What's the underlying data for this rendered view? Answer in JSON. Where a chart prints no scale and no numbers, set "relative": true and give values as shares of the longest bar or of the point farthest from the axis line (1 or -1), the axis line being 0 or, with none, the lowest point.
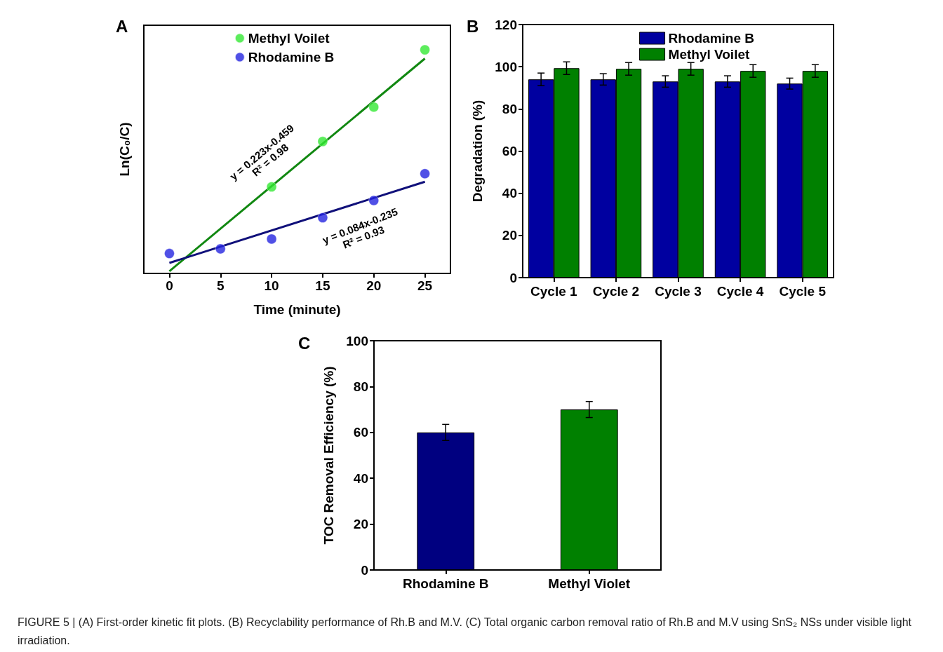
{
  "chart_data": [
    {
      "type": "scatter",
      "title": "A",
      "xlabel": "Time (minute)",
      "ylabel": "Ln(C₀/C)",
      "relative": true,
      "xlim": [
        -2.5,
        27.5
      ],
      "xticks": [
        0,
        5,
        10,
        15,
        20,
        25
      ],
      "marker": "circle",
      "legend": "top",
      "annotations": [
        "y = 0.223x-0.459",
        "R² = 0.98",
        "y = 0.084x-0.235",
        "R² = 0.93"
      ],
      "series": [
        {
          "name": "Methyl Voilet",
          "color": "#33e833",
          "x": [
            10,
            15,
            20,
            25
          ],
          "values": [
            0.387,
            0.59,
            0.744,
            1
          ]
        },
        {
          "name": "Rhodamine B",
          "color": "#2424e0",
          "x": [
            0,
            5,
            10,
            15,
            20,
            25
          ],
          "values": [
            0.089,
            0.11,
            0.154,
            0.249,
            0.326,
            0.446
          ]
        },
        {
          "type": "line",
          "color": "#118811",
          "marker": "none",
          "x": [
            0,
            25
          ],
          "values": [
            0.01,
            0.961
          ]
        },
        {
          "type": "line",
          "color": "#10107a",
          "marker": "none",
          "x": [
            0,
            25
          ],
          "values": [
            0.047,
            0.41
          ]
        }
      ]
    },
    {
      "type": "bar",
      "title": "B",
      "ylabel": "Degradation (%)",
      "categories": [
        "Cycle 1",
        "Cycle 2",
        "Cycle 3",
        "Cycle 4",
        "Cycle 5"
      ],
      "ylim": [
        0,
        120
      ],
      "yticks": [
        0,
        20,
        40,
        60,
        80,
        100,
        120
      ],
      "legend": "top right",
      "series": [
        {
          "name": "Rhodamine B",
          "color": "#0000a0",
          "values": [
            94,
            94,
            93,
            93,
            92
          ],
          "errors": [
            3,
            2.7,
            2.7,
            2.7,
            2.6
          ]
        },
        {
          "name": "Methyl Voilet",
          "color": "#008000",
          "values": [
            99.3,
            99,
            99,
            98,
            98
          ],
          "errors": [
            3,
            3,
            3,
            3,
            3
          ]
        }
      ]
    },
    {
      "type": "bar",
      "title": "C",
      "ylabel": "TOC Removal Efficiency (%)",
      "categories": [
        "Rhodamine B",
        "Methyl Violet"
      ],
      "ylim": [
        0,
        100
      ],
      "yticks": [
        0,
        20,
        40,
        60,
        80,
        100
      ],
      "values": [
        60,
        70
      ],
      "colors": [
        "#000080",
        "#008000"
      ],
      "errors": [
        3.5,
        3.5
      ],
      "annotations": [
        "FIGURE 5 | (A) First-order kinetic fit plots. (B) Recyclability performance of Rh.B and M.V. (C) Total organic carbon removal ratio of Rh.B and M.V using SnS₂ NSs under visible light irradiation."
      ]
    }
  ]
}
